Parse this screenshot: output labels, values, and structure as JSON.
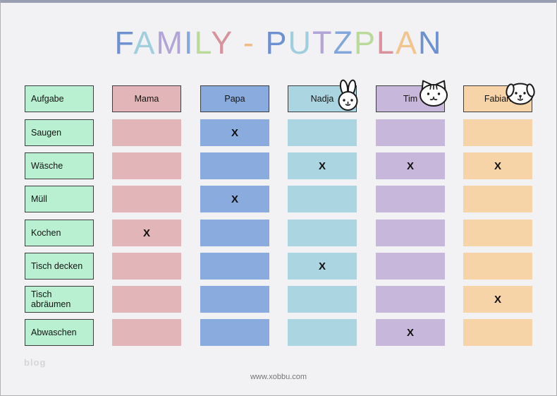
{
  "page": {
    "background": "#f2f2f4",
    "top_border_color": "#98a0b2",
    "watermark": "blog",
    "footer_url": "www.xobbu.com"
  },
  "title": {
    "text": "FAMILY - PUTZPLAN",
    "letters": [
      {
        "ch": "F",
        "color": "#6e91d1"
      },
      {
        "ch": "A",
        "color": "#9fcedd"
      },
      {
        "ch": "M",
        "color": "#b2a4d6"
      },
      {
        "ch": "I",
        "color": "#83a7da"
      },
      {
        "ch": "L",
        "color": "#b9da9b"
      },
      {
        "ch": "Y",
        "color": "#d9919c"
      },
      {
        "ch": " ",
        "color": ""
      },
      {
        "ch": "-",
        "color": "#f2bc80"
      },
      {
        "ch": " ",
        "color": ""
      },
      {
        "ch": "P",
        "color": "#6e91d1"
      },
      {
        "ch": "U",
        "color": "#9fcedd"
      },
      {
        "ch": "T",
        "color": "#b2a4d6"
      },
      {
        "ch": "Z",
        "color": "#83a7da"
      },
      {
        "ch": "P",
        "color": "#b9da9b"
      },
      {
        "ch": "L",
        "color": "#d9919c"
      },
      {
        "ch": "A",
        "color": "#f2c48d"
      },
      {
        "ch": "N",
        "color": "#6e91d1"
      }
    ]
  },
  "table": {
    "task_column": {
      "label": "Aufgabe",
      "fill": "#b8f0d1",
      "border": "#3d3d3d"
    },
    "members": [
      {
        "key": "mama",
        "label": "Mama",
        "fill": "#e2b5b8",
        "icon": ""
      },
      {
        "key": "papa",
        "label": "Papa",
        "fill": "#89abdd",
        "icon": ""
      },
      {
        "key": "nadja",
        "label": "Nadja",
        "fill": "#abd5e0",
        "icon": "bunny-icon"
      },
      {
        "key": "tim",
        "label": "Tim",
        "fill": "#c6b7db",
        "icon": "cat-icon"
      },
      {
        "key": "fabian",
        "label": "Fabian",
        "fill": "#f6d4a8",
        "icon": "dog-icon"
      }
    ],
    "mark_symbol": "X",
    "rows": [
      {
        "task": "Saugen",
        "marks": [
          "papa"
        ]
      },
      {
        "task": "Wäsche",
        "marks": [
          "nadja",
          "tim",
          "fabian"
        ]
      },
      {
        "task": "Müll",
        "marks": [
          "papa"
        ]
      },
      {
        "task": "Kochen",
        "marks": [
          "mama"
        ]
      },
      {
        "task": "Tisch decken",
        "marks": [
          "nadja"
        ]
      },
      {
        "task": "Tisch abräumen",
        "marks": [
          "fabian"
        ]
      },
      {
        "task": "Abwaschen",
        "marks": [
          "tim"
        ]
      }
    ]
  }
}
